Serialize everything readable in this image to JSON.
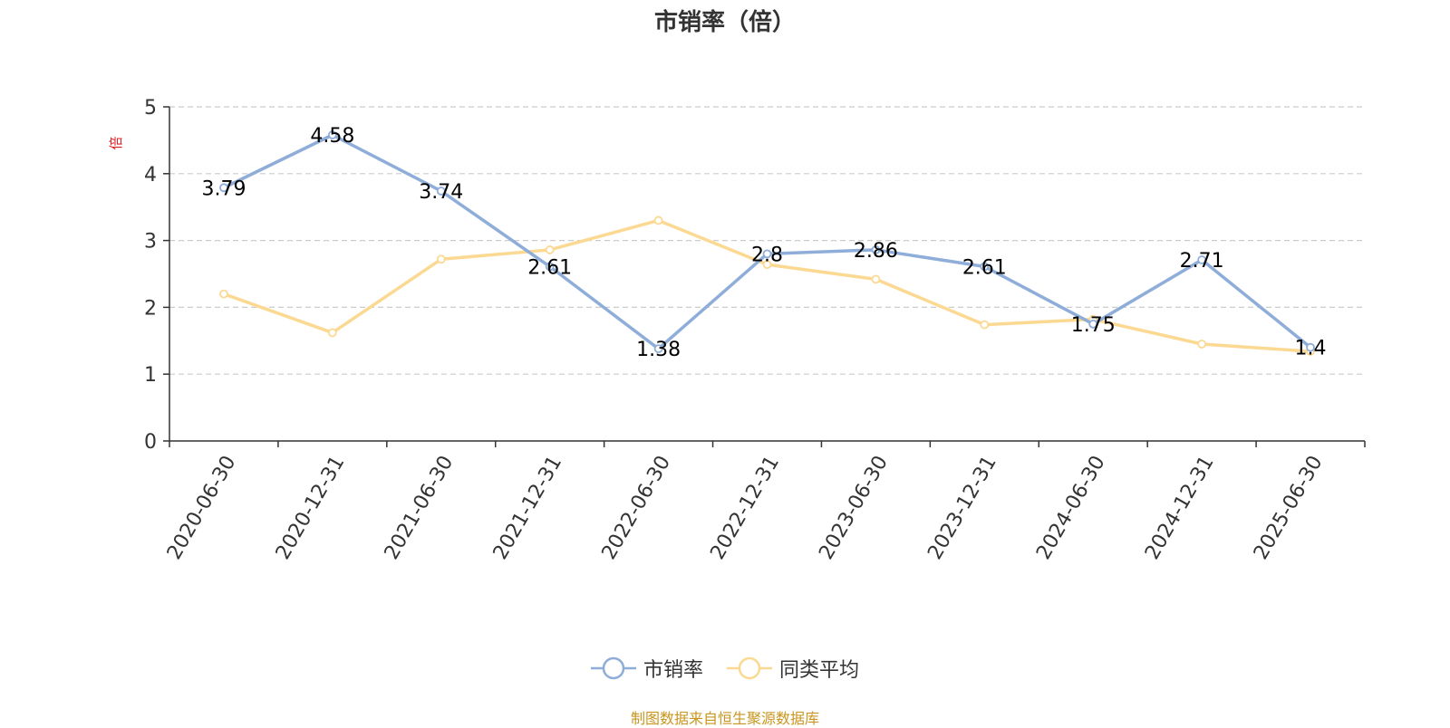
{
  "chart_data": {
    "type": "line",
    "title": "市销率（倍）",
    "ylabel": "倍",
    "xlabel": "",
    "categories": [
      "2020-06-30",
      "2020-12-31",
      "2021-06-30",
      "2021-12-31",
      "2022-06-30",
      "2022-12-31",
      "2023-06-30",
      "2023-12-31",
      "2024-06-30",
      "2024-12-31",
      "2025-06-30"
    ],
    "ylim": [
      0,
      5
    ],
    "yticks": [
      "0",
      "1",
      "2",
      "3",
      "4",
      "5"
    ],
    "grid": true,
    "legend_position": "bottom",
    "series": [
      {
        "name": "市销率",
        "color": "#8eadd9",
        "values": [
          3.79,
          4.58,
          3.74,
          2.61,
          1.38,
          2.8,
          2.86,
          2.61,
          1.75,
          2.71,
          1.4
        ],
        "labels": [
          "3.79",
          "4.58",
          "3.74",
          "2.61",
          "1.38",
          "2.8",
          "2.86",
          "2.61",
          "1.75",
          "2.71",
          "1.4"
        ],
        "show_labels": true
      },
      {
        "name": "同类平均",
        "color": "#fbd992",
        "values": [
          2.2,
          1.62,
          2.72,
          2.86,
          3.3,
          2.64,
          2.42,
          1.74,
          1.82,
          1.45,
          1.34
        ],
        "show_labels": false
      }
    ]
  },
  "ylabel_color": "#e02020",
  "source_text": "制图数据来自恒生聚源数据库",
  "source_color": "#c8961e"
}
